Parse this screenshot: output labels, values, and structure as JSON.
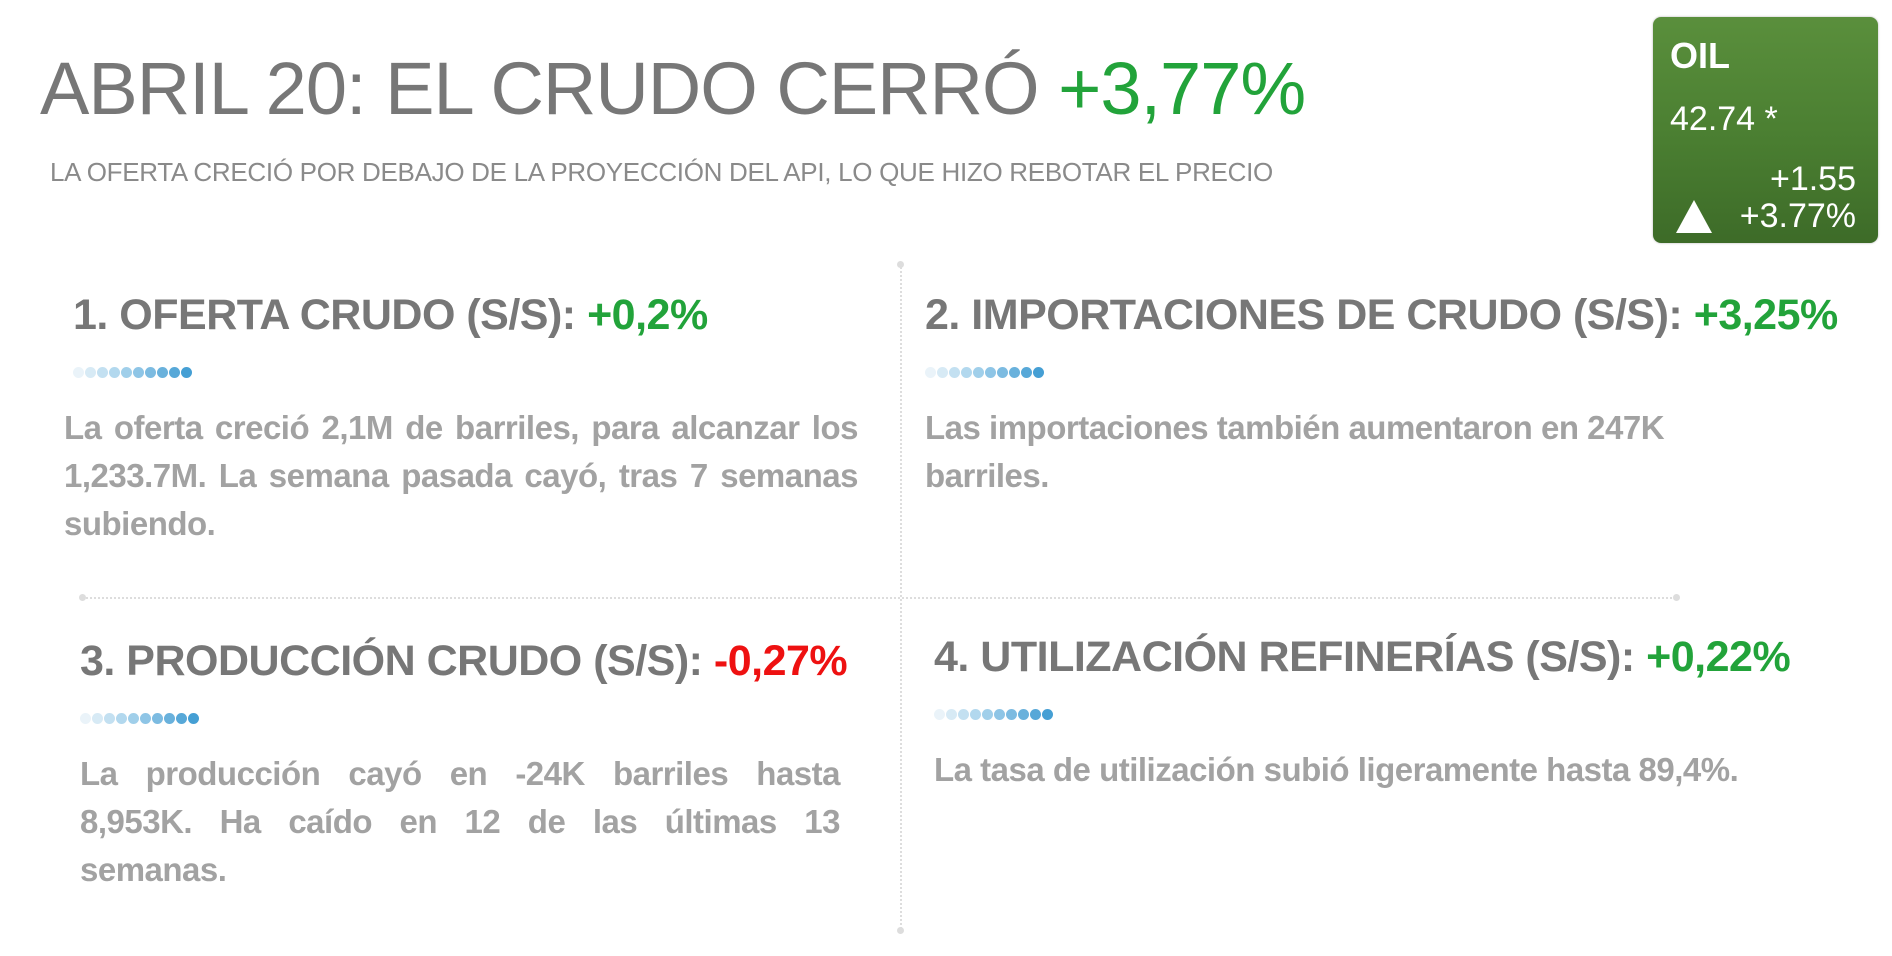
{
  "header": {
    "title": "ABRIL 20: EL CRUDO CERRÓ",
    "title_change": "+3,77%",
    "subtitle": "LA OFERTA CRECIÓ POR DEBAJO DE LA PROYECCIÓN DEL API, LO QUE HIZO REBOTAR EL PRECIO"
  },
  "ticker": {
    "symbol": "OIL",
    "price": "42.74 *",
    "change": "+1.55",
    "change_pct": "+3.77%",
    "direction_icon": "triangle-up-icon",
    "color": "#4a7e31"
  },
  "colors": {
    "positive": "#22a33a",
    "negative": "#ee1111",
    "dots": [
      "#eaf3f9",
      "#d7eaf5",
      "#c3e0f1",
      "#b2d8ee",
      "#a0cfea",
      "#8ec5e6",
      "#7cbbe1",
      "#69b1dc",
      "#57a8d8",
      "#459fd4"
    ]
  },
  "sections": [
    {
      "heading": "1.  OFERTA CRUDO (S/S):",
      "value": "+0,2%",
      "body": "La oferta creció 2,1M de barriles, para alcanzar los 1,233.7M. La semana pasada cayó, tras 7 semanas subiendo."
    },
    {
      "heading": "2. IMPORTACIONES DE CRUDO (S/S):",
      "value": "+3,25%",
      "body": "Las importaciones también aumentaron en 247K barriles."
    },
    {
      "heading": "3. PRODUCCIÓN CRUDO (S/S):",
      "value": "-0,27%",
      "body": "La producción cayó en -24K barriles hasta 8,953K. Ha caído en 12 de las últimas 13 semanas."
    },
    {
      "heading": "4. UTILIZACIÓN REFINERÍAS (S/S):",
      "value": "+0,22%",
      "body": "La tasa de utilización subió ligeramente hasta 89,4%."
    }
  ]
}
